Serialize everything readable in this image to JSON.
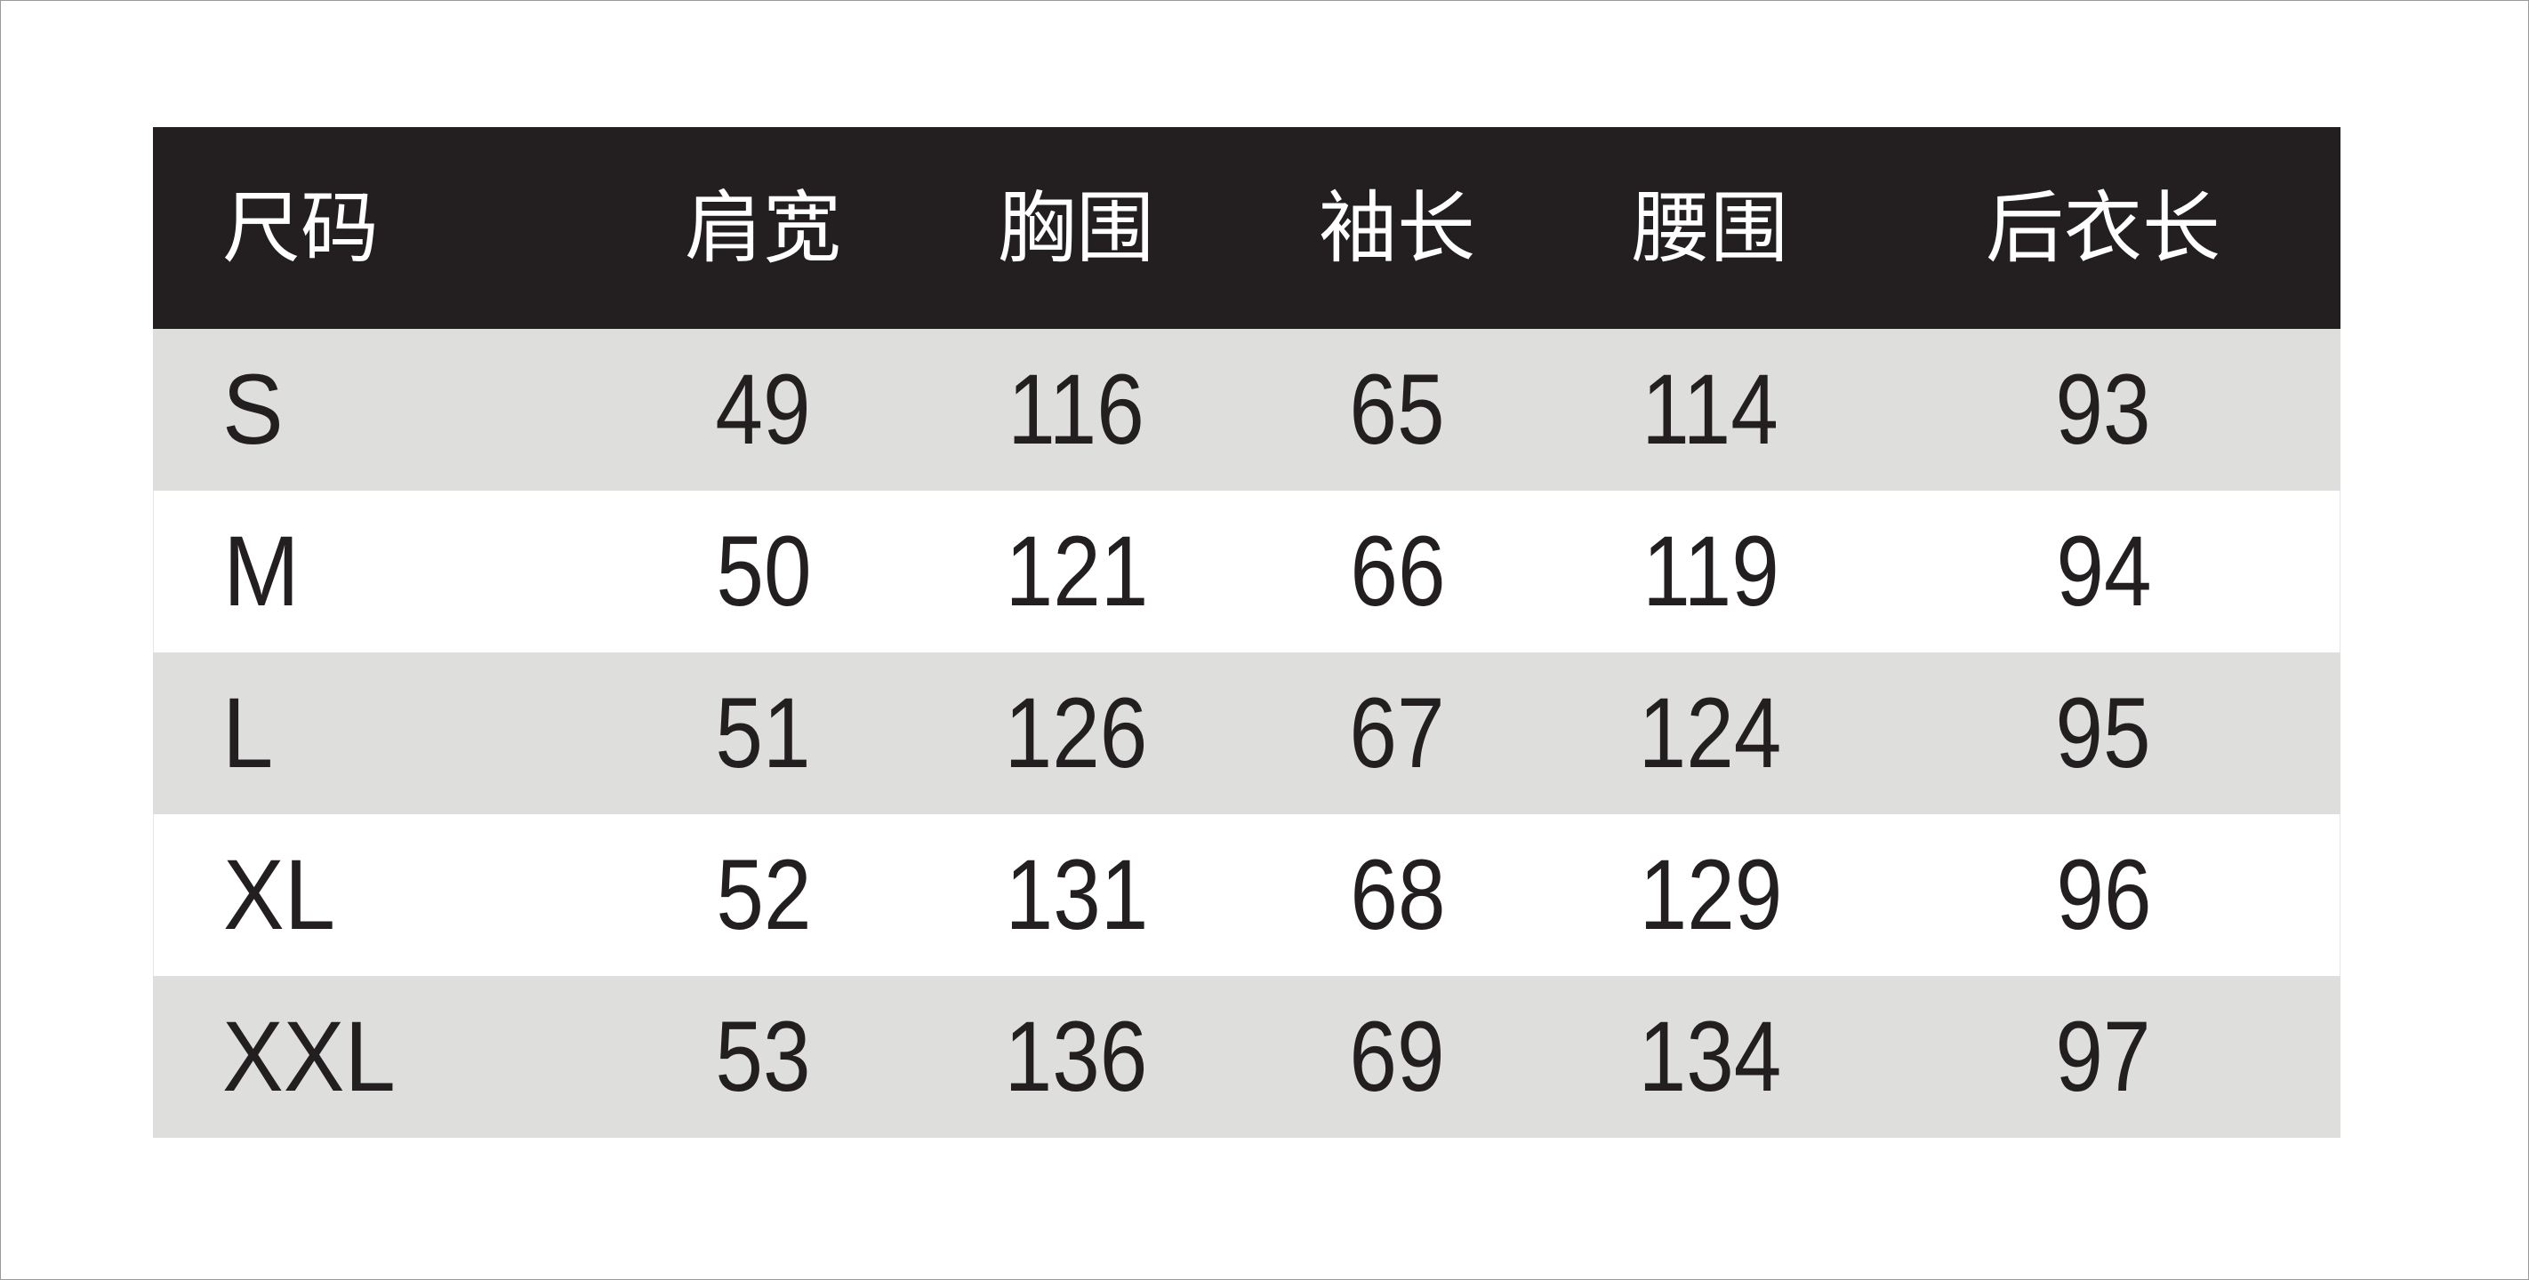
{
  "colors": {
    "header_bg": "#231f20",
    "header_text": "#ffffff",
    "stripe": "#dededc",
    "text": "#231f20"
  },
  "headers": [
    "尺码",
    "肩宽",
    "胸围",
    "袖长",
    "腰围",
    "后衣长"
  ],
  "rows": [
    [
      "S",
      "49",
      "116",
      "65",
      "114",
      "93"
    ],
    [
      "M",
      "50",
      "121",
      "66",
      "119",
      "94"
    ],
    [
      "L",
      "51",
      "126",
      "67",
      "124",
      "95"
    ],
    [
      "XL",
      "52",
      "131",
      "68",
      "129",
      "96"
    ],
    [
      "XXL",
      "53",
      "136",
      "69",
      "134",
      "97"
    ]
  ]
}
